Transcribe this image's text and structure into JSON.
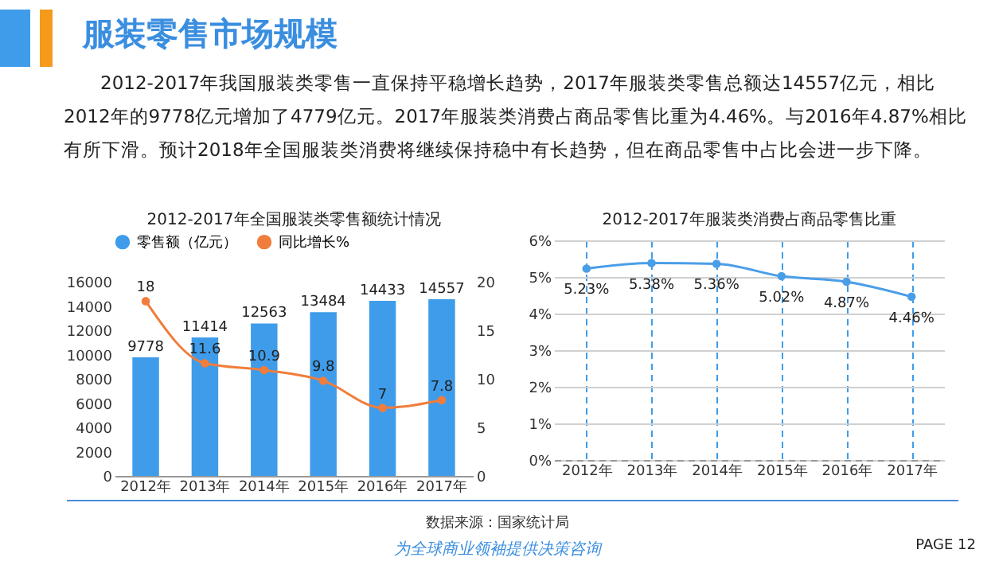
{
  "chart_data": [
    {
      "type": "bar",
      "title": "2012-2017年全国服装类零售额统计情况",
      "categories": [
        "2012年",
        "2013年",
        "2014年",
        "2015年",
        "2016年",
        "2017年"
      ],
      "series": [
        {
          "name": "零售额（亿元）",
          "type": "bar",
          "color": "#3f9cea",
          "values": [
            9778,
            11414,
            12563,
            13484,
            14433,
            14557
          ]
        },
        {
          "name": "同比增长%",
          "type": "line",
          "axis": "y2",
          "color": "#f07d3c",
          "values": [
            18,
            11.6,
            10.9,
            9.8,
            7,
            7.8
          ]
        }
      ],
      "ylim": [
        0,
        16000
      ],
      "yticks": [
        0,
        2000,
        4000,
        6000,
        8000,
        10000,
        12000,
        14000,
        16000
      ],
      "y2lim": [
        0,
        20
      ],
      "y2ticks": [
        0,
        5,
        10,
        15,
        20
      ],
      "data_labels": true,
      "legend": "top",
      "marker": "circle",
      "annotations": [
        "服装零售市场规模",
        "2012-2017年我国服装类零售一直保持平稳增长趋势，2017年服装类零售总额达14557亿元，相比2012年的9778亿元增加了4779亿元。2017年服装类消费占商品零售比重为4.46%。与2016年4.87%相比有所下滑。预计2018年全国服装类消费将继续保持稳中有长趋势，但在商品零售中占比会进一步下降。",
        "数据来源：国家统计局",
        "为全球商业领袖提供决策咨询",
        "PAGE  12"
      ]
    },
    {
      "type": "line",
      "title": "2012-2017年服装类消费占商品零售比重",
      "categories": [
        "2012年",
        "2013年",
        "2014年",
        "2015年",
        "2016年",
        "2017年"
      ],
      "series": [
        {
          "color": "#4a9ee8",
          "values": [
            5.23,
            5.38,
            5.36,
            5.02,
            4.87,
            4.46
          ],
          "value_labels": [
            "5.23%",
            "5.38%",
            "5.36%",
            "5.02%",
            "4.87%",
            "4.46%"
          ]
        }
      ],
      "ylim": [
        0,
        6
      ],
      "yticks": [
        {
          "value": 0,
          "label": "0%"
        },
        {
          "value": 1,
          "label": "1%"
        },
        {
          "value": 2,
          "label": "2%"
        },
        {
          "value": 3,
          "label": "3%"
        },
        {
          "value": 4,
          "label": "4%"
        },
        {
          "value": 5,
          "label": "5%"
        },
        {
          "value": 6,
          "label": "6%"
        }
      ],
      "grid": true,
      "marker": "circle"
    }
  ]
}
